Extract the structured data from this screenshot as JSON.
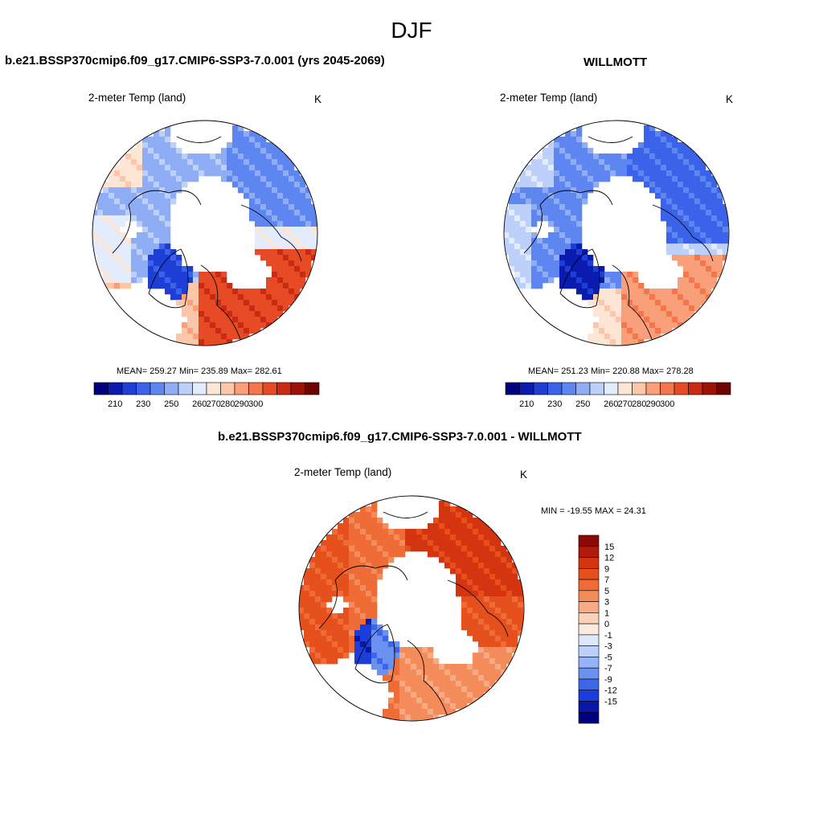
{
  "season": "DJF",
  "panel_a": {
    "title": "b.e21.BSSP370cmip6.f09_g17.CMIP6-SSP3-7.0.001 (yrs 2045-2069)",
    "subtitle_left": "2-meter Temp (land)",
    "subtitle_right": "K",
    "stats": "MEAN= 259.27  Min= 235.89  Max= 282.61"
  },
  "panel_b": {
    "title": "WILLMOTT",
    "subtitle_left": "2-meter Temp (land)",
    "subtitle_right": "K",
    "stats": "MEAN= 251.23  Min= 220.88  Max= 278.28"
  },
  "panel_c": {
    "title": "b.e21.BSSP370cmip6.f09_g17.CMIP6-SSP3-7.0.001 - WILLMOTT",
    "subtitle_left": "2-meter Temp (land)",
    "subtitle_right": "K",
    "minmax": "MIN = -19.55 MAX =  24.31"
  },
  "abs_colorbar": {
    "labels": [
      "210",
      "230",
      "250",
      "260",
      "270",
      "280",
      "290",
      "300"
    ],
    "colors": [
      "#00007f",
      "#0a1bb0",
      "#1e3fd6",
      "#3a63ea",
      "#5e86f0",
      "#8eadf5",
      "#bcd0fa",
      "#e3ecfc",
      "#fde6d6",
      "#fcc7a8",
      "#f9a07a",
      "#f3764c",
      "#e64b26",
      "#c82a12",
      "#9c1206",
      "#6d0402"
    ]
  },
  "diff_colorbar": {
    "labels": [
      "15",
      "12",
      "9",
      "7",
      "5",
      "3",
      "1",
      "0",
      "-1",
      "-3",
      "-5",
      "-7",
      "-9",
      "-12",
      "-15"
    ],
    "colors": [
      "#8a0a05",
      "#b21b09",
      "#d43410",
      "#e6501c",
      "#f06c36",
      "#f48b5a",
      "#f8aa82",
      "#fbd2b8",
      "#fdeadf",
      "#dde8fb",
      "#bcd0fa",
      "#95b4f5",
      "#6a90f0",
      "#3c66ea",
      "#1a3ddb",
      "#0718a6",
      "#00007f"
    ]
  }
}
